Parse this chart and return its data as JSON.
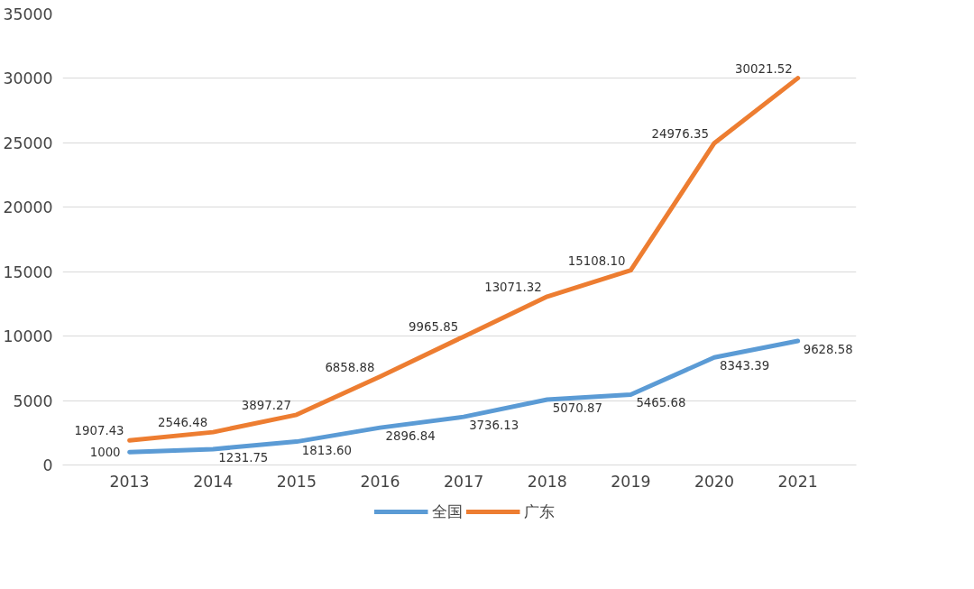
{
  "chart_data": {
    "type": "line",
    "categories": [
      "2013",
      "2014",
      "2015",
      "2016",
      "2017",
      "2018",
      "2019",
      "2020",
      "2021"
    ],
    "series": [
      {
        "name": "全国",
        "color": "#5b9bd5",
        "values": [
          1000,
          1231.75,
          1813.6,
          2896.84,
          3736.13,
          5070.87,
          5465.68,
          8343.39,
          9628.58
        ],
        "value_labels": [
          "1000",
          "1231.75",
          "1813.60",
          "2896.84",
          "3736.13",
          "5070.87",
          "5465.68",
          "8343.39",
          "9628.58"
        ]
      },
      {
        "name": "广东",
        "color": "#ed7d31",
        "values": [
          1907.43,
          2546.48,
          3897.27,
          6858.88,
          9965.85,
          13071.32,
          15108.1,
          24976.35,
          30021.52
        ],
        "value_labels": [
          "1907.43",
          "2546.48",
          "3897.27",
          "6858.88",
          "9965.85",
          "13071.32",
          "15108.10",
          "24976.35",
          "30021.52"
        ]
      }
    ],
    "ylim": [
      0,
      35000
    ],
    "yticks": [
      0,
      5000,
      10000,
      15000,
      20000,
      25000,
      30000,
      35000
    ],
    "grid": "y",
    "legend": "bottom",
    "marker": "none",
    "line_style": "solid"
  }
}
